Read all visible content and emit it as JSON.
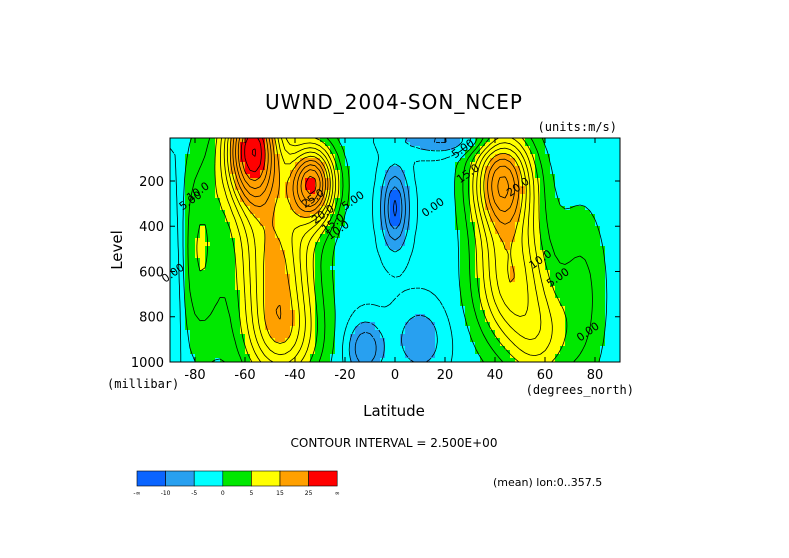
{
  "chart_data": {
    "type": "heatmap",
    "title": "UWND_2004-SON_NCEP",
    "units_note": "(units:m/s)",
    "xlabel": "Latitude",
    "ylabel": "Level",
    "x_units": "(degrees_north)",
    "y_units": "(millibar)",
    "xlim": [
      -90,
      90
    ],
    "ylim": [
      1000,
      10
    ],
    "x_ticks": [
      -80,
      -60,
      -40,
      -20,
      0,
      20,
      40,
      60,
      80
    ],
    "x_tick_labels": [
      "-80",
      "-60",
      "-40",
      "-20",
      "0",
      "20",
      "40",
      "60",
      "80"
    ],
    "y_ticks": [
      200,
      400,
      600,
      800,
      1000
    ],
    "y_tick_labels": [
      "200",
      "400",
      "600",
      "800",
      "1000"
    ],
    "contour_interval_text": "CONTOUR INTERVAL = 2.500E+00",
    "footnote": "(mean) lon:0..357.5",
    "colorbar": {
      "colors": [
        "#0a64ff",
        "#28a0f0",
        "#00ffff",
        "#00e800",
        "#ffff00",
        "#ffa000",
        "#ff0000"
      ],
      "labels": [
        "-∞",
        "-10",
        "-5",
        "0",
        "5",
        "15",
        "25",
        "∞"
      ]
    },
    "contour_labels": [
      {
        "text": "25.0",
        "lat": -32,
        "lev": 290
      },
      {
        "text": "20.0",
        "lat": -28,
        "lev": 360
      },
      {
        "text": "15.0",
        "lat": -24,
        "lev": 400
      },
      {
        "text": "10.0",
        "lat": -22,
        "lev": 430
      },
      {
        "text": "5.00",
        "lat": -16,
        "lev": 300
      },
      {
        "text": "5.00",
        "lat": -81,
        "lev": 300
      },
      {
        "text": "10.0",
        "lat": -78,
        "lev": 260
      },
      {
        "text": "0.00",
        "lat": -88,
        "lev": 620
      },
      {
        "text": "0.00",
        "lat": 16,
        "lev": 330
      },
      {
        "text": "5.00",
        "lat": 28,
        "lev": 70
      },
      {
        "text": "15.0",
        "lat": 30,
        "lev": 180
      },
      {
        "text": "20.0",
        "lat": 50,
        "lev": 240
      },
      {
        "text": "10.0",
        "lat": 59,
        "lev": 560
      },
      {
        "text": "5.00",
        "lat": 66,
        "lev": 640
      },
      {
        "text": "0.00",
        "lat": 78,
        "lev": 880
      }
    ]
  }
}
